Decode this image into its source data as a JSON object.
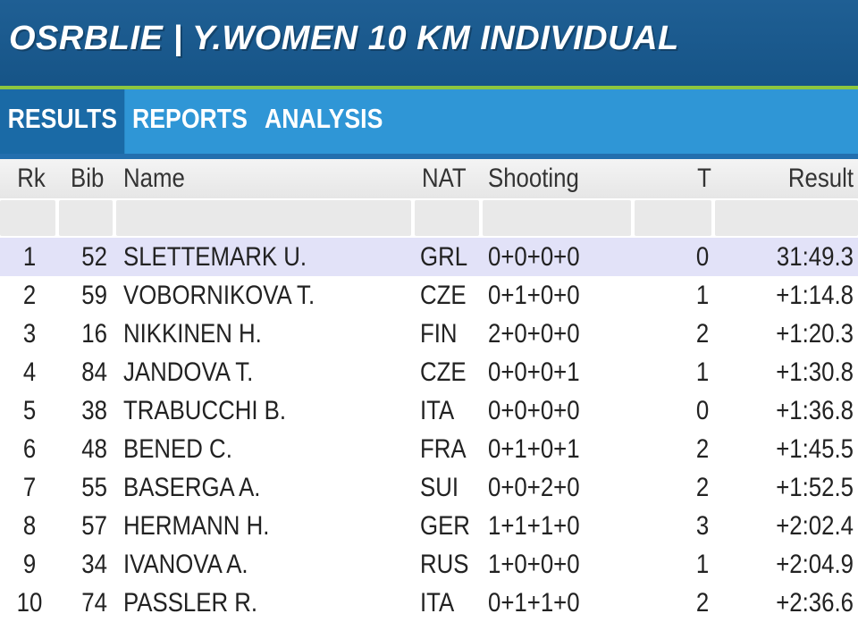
{
  "header": {
    "title": "OSRBLIE | Y.WOMEN 10 KM INDIVIDUAL"
  },
  "tabs": [
    {
      "label": "RESULTS",
      "active": true
    },
    {
      "label": "REPORTS",
      "active": false
    },
    {
      "label": "ANALYSIS",
      "active": false
    }
  ],
  "columns": {
    "rk": "Rk",
    "bib": "Bib",
    "name": "Name",
    "nat": "NAT",
    "shooting": "Shooting",
    "t": "T",
    "result": "Result"
  },
  "rows": [
    {
      "rk": "1",
      "bib": "52",
      "name": "SLETTEMARK U.",
      "nat": "GRL",
      "shooting": "0+0+0+0",
      "t": "0",
      "result": "31:49.3"
    },
    {
      "rk": "2",
      "bib": "59",
      "name": "VOBORNIKOVA T.",
      "nat": "CZE",
      "shooting": "0+1+0+0",
      "t": "1",
      "result": "+1:14.8"
    },
    {
      "rk": "3",
      "bib": "16",
      "name": "NIKKINEN H.",
      "nat": "FIN",
      "shooting": "2+0+0+0",
      "t": "2",
      "result": "+1:20.3"
    },
    {
      "rk": "4",
      "bib": "84",
      "name": "JANDOVA T.",
      "nat": "CZE",
      "shooting": "0+0+0+1",
      "t": "1",
      "result": "+1:30.8"
    },
    {
      "rk": "5",
      "bib": "38",
      "name": "TRABUCCHI B.",
      "nat": "ITA",
      "shooting": "0+0+0+0",
      "t": "0",
      "result": "+1:36.8"
    },
    {
      "rk": "6",
      "bib": "48",
      "name": "BENED C.",
      "nat": "FRA",
      "shooting": "0+1+0+1",
      "t": "2",
      "result": "+1:45.5"
    },
    {
      "rk": "7",
      "bib": "55",
      "name": "BASERGA A.",
      "nat": "SUI",
      "shooting": "0+0+2+0",
      "t": "2",
      "result": "+1:52.5"
    },
    {
      "rk": "8",
      "bib": "57",
      "name": "HERMANN H.",
      "nat": "GER",
      "shooting": "1+1+1+0",
      "t": "3",
      "result": "+2:02.4"
    },
    {
      "rk": "9",
      "bib": "34",
      "name": "IVANOVA A.",
      "nat": "RUS",
      "shooting": "1+0+0+0",
      "t": "1",
      "result": "+2:04.9"
    },
    {
      "rk": "10",
      "bib": "74",
      "name": "PASSLER R.",
      "nat": "ITA",
      "shooting": "0+1+1+0",
      "t": "2",
      "result": "+2:36.6"
    }
  ],
  "colors": {
    "header_bg": "#1f5f94",
    "accent_line": "#8cc63f",
    "tab_bar": "#2f96d6",
    "tab_active": "#1a6aa6",
    "row_highlight": "#e2e2f8"
  }
}
